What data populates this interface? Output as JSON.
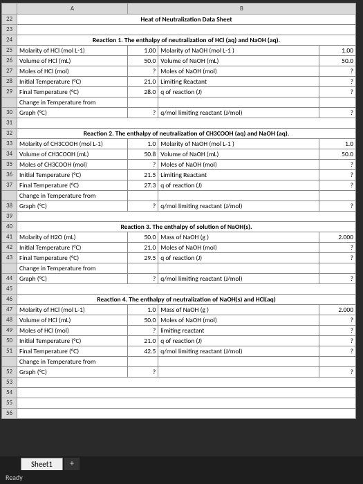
{
  "colHeaders": [
    "A",
    "B"
  ],
  "title": "Heat of Neutralization Data Sheet",
  "sections": {
    "r1": {
      "header": "Reaction 1. The enthalpy of neutralization of HCl (aq) and NaOH (aq).",
      "rows": [
        [
          "Molarity of HCl (mol L-1)",
          "1.00",
          "Molarity of NaOH (mol L-1 )",
          "1.00"
        ],
        [
          "Volume of HCl (mL)",
          "50.0",
          "Volume of NaOH (mL)",
          "50.0"
        ],
        [
          "Moles of HCl (mol)",
          "?",
          "Moles of NaOH (mol)",
          "?"
        ],
        [
          "Initial Temperature (°C)",
          "21.0",
          "Limiting Reactant",
          "?"
        ],
        [
          "Final Temperature (°C)",
          "28.0",
          "q of reaction (J)",
          "?"
        ],
        [
          "Change in Temperature from",
          "",
          "",
          ""
        ],
        [
          "Graph (°C)",
          "?",
          "q/mol limiting reactant (J/mol)",
          "?"
        ]
      ]
    },
    "r2": {
      "header": "Reaction 2. The enthalpy of neutralization of CH3COOH (aq) and NaOH (aq).",
      "rows": [
        [
          "Molarity of CH3COOH (mol L-1)",
          "1.0",
          "Molarity of NaOH (mol L-1 )",
          "1.0"
        ],
        [
          "Volume of CH3COOH (mL)",
          "50.8",
          "Volume of NaOH (mL)",
          "50.0"
        ],
        [
          "Moles of CH3COOH (mol)",
          "?",
          "Moles of NaOH (mol)",
          "?"
        ],
        [
          "Initial Temperature (°C)",
          "21.5",
          "Limiting Reactant",
          "?"
        ],
        [
          "Final Temperature (°C)",
          "27.3",
          "q of reaction (J)",
          "?"
        ],
        [
          "Change in Temperature from",
          "",
          "",
          ""
        ],
        [
          "Graph (°C)",
          "?",
          "q/mol limiting reactant (J/mol)",
          "?"
        ]
      ]
    },
    "r3": {
      "header": "Reaction 3. The enthalpy of solution of NaOH(s).",
      "rows": [
        [
          "Molarity of H2O (mL)",
          "50.0",
          "Mass of NaOH (g )",
          "2.000"
        ],
        [
          "Initial Temperature (°C)",
          "21.0",
          "Moles of NaOH (mol)",
          "?"
        ],
        [
          "Final Temperature (°C)",
          "29.5",
          "q of reaction (J)",
          "?"
        ],
        [
          "Change in Temperature from",
          "",
          "",
          ""
        ],
        [
          "Graph (°C)",
          "?",
          "q/mol limiting reactant (J/mol)",
          "?"
        ]
      ]
    },
    "r4": {
      "header": "Reaction 4. The enthalpy of neutralization of NaOH(s) and HCl(aq)",
      "rows": [
        [
          "Molarity of  HCl (mol L-1)",
          "1.0",
          "Mass of NaOH (g )",
          "2.000"
        ],
        [
          "Volume of HCl (mL)",
          "50.0",
          "Moles of NaOH (mol)",
          "?"
        ],
        [
          "Moles of HCl (mol)",
          "?",
          "limiting reactant",
          "?"
        ],
        [
          "Initial Temperature (°C)",
          "21.0",
          "q of reaction (J)",
          "?"
        ],
        [
          "Final Temperature (°C)",
          "42.5",
          "q/mol limiting reactant (J/mol)",
          "?"
        ],
        [
          "Change in Temperature from",
          "",
          "",
          ""
        ],
        [
          "Graph (°C)",
          "?",
          "",
          "?"
        ]
      ]
    }
  },
  "tab": "Sheet1",
  "status": "Ready"
}
